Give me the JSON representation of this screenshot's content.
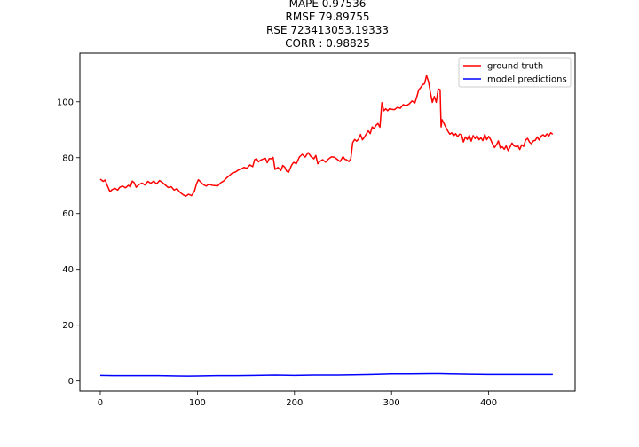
{
  "chart_data": {
    "type": "line",
    "title_lines": [
      "MAPE 0.97536",
      "RMSE 79.89755",
      "RSE 723413053.19333",
      "CORR : 0.98825"
    ],
    "xlabel": "",
    "ylabel": "",
    "xlim": [
      -21,
      489
    ],
    "ylim": [
      -3.6,
      117.4
    ],
    "xticks": [
      0,
      100,
      200,
      300,
      400
    ],
    "yticks": [
      0,
      20,
      40,
      60,
      80,
      100
    ],
    "grid": false,
    "legend_position": "top-right",
    "series": [
      {
        "name": "ground truth",
        "color": "#ff0000",
        "points": [
          [
            0,
            72.3
          ],
          [
            3,
            71.5
          ],
          [
            5,
            72.0
          ],
          [
            7,
            70.2
          ],
          [
            10,
            67.8
          ],
          [
            12,
            68.5
          ],
          [
            15,
            69.0
          ],
          [
            18,
            68.4
          ],
          [
            20,
            69.4
          ],
          [
            23,
            69.8
          ],
          [
            26,
            69.2
          ],
          [
            29,
            70.1
          ],
          [
            31,
            69.5
          ],
          [
            33,
            71.6
          ],
          [
            35,
            71.0
          ],
          [
            37,
            69.4
          ],
          [
            40,
            70.4
          ],
          [
            43,
            70.9
          ],
          [
            46,
            70.2
          ],
          [
            49,
            71.5
          ],
          [
            52,
            70.8
          ],
          [
            55,
            71.6
          ],
          [
            58,
            70.6
          ],
          [
            61,
            71.8
          ],
          [
            64,
            71.1
          ],
          [
            67,
            70.2
          ],
          [
            70,
            69.3
          ],
          [
            73,
            69.6
          ],
          [
            76,
            68.4
          ],
          [
            79,
            68.9
          ],
          [
            82,
            67.6
          ],
          [
            85,
            66.8
          ],
          [
            88,
            66.2
          ],
          [
            91,
            66.9
          ],
          [
            94,
            66.4
          ],
          [
            97,
            68.0
          ],
          [
            99,
            70.5
          ],
          [
            101,
            72.1
          ],
          [
            103,
            71.4
          ],
          [
            106,
            70.4
          ],
          [
            109,
            69.8
          ],
          [
            112,
            70.5
          ],
          [
            115,
            70.1
          ],
          [
            118,
            70.0
          ],
          [
            121,
            69.9
          ],
          [
            124,
            71.0
          ],
          [
            127,
            71.6
          ],
          [
            130,
            72.7
          ],
          [
            133,
            73.6
          ],
          [
            136,
            74.5
          ],
          [
            139,
            74.8
          ],
          [
            142,
            75.5
          ],
          [
            145,
            76.0
          ],
          [
            148,
            76.5
          ],
          [
            151,
            76.2
          ],
          [
            154,
            77.4
          ],
          [
            157,
            76.8
          ],
          [
            159,
            79.3
          ],
          [
            161,
            79.6
          ],
          [
            163,
            78.5
          ],
          [
            165,
            79.1
          ],
          [
            167,
            79.4
          ],
          [
            170,
            79.8
          ],
          [
            172,
            78.2
          ],
          [
            174,
            79.7
          ],
          [
            176,
            79.6
          ],
          [
            178,
            80.1
          ],
          [
            180,
            75.8
          ],
          [
            183,
            76.5
          ],
          [
            186,
            75.4
          ],
          [
            188,
            77.2
          ],
          [
            190,
            76.6
          ],
          [
            192,
            75.1
          ],
          [
            194,
            74.8
          ],
          [
            197,
            77.3
          ],
          [
            199,
            78.3
          ],
          [
            202,
            77.9
          ],
          [
            205,
            80.2
          ],
          [
            208,
            81.2
          ],
          [
            211,
            80.2
          ],
          [
            214,
            81.8
          ],
          [
            217,
            80.4
          ],
          [
            220,
            79.6
          ],
          [
            222,
            80.8
          ],
          [
            224,
            77.8
          ],
          [
            226,
            78.6
          ],
          [
            229,
            79.3
          ],
          [
            232,
            78.4
          ],
          [
            235,
            79.5
          ],
          [
            238,
            80.3
          ],
          [
            241,
            80.2
          ],
          [
            244,
            79.4
          ],
          [
            247,
            78.6
          ],
          [
            250,
            80.4
          ],
          [
            252,
            79.4
          ],
          [
            254,
            79.2
          ],
          [
            256,
            78.6
          ],
          [
            258,
            79.6
          ],
          [
            260,
            85.4
          ],
          [
            262,
            86.5
          ],
          [
            264,
            85.9
          ],
          [
            266,
            86.6
          ],
          [
            268,
            88.3
          ],
          [
            270,
            86.4
          ],
          [
            272,
            87.3
          ],
          [
            274,
            88.5
          ],
          [
            276,
            89.6
          ],
          [
            278,
            88.6
          ],
          [
            280,
            91.0
          ],
          [
            282,
            90.4
          ],
          [
            284,
            91.6
          ],
          [
            286,
            92.2
          ],
          [
            288,
            90.9
          ],
          [
            290,
            99.7
          ],
          [
            292,
            96.8
          ],
          [
            294,
            97.5
          ],
          [
            296,
            96.8
          ],
          [
            298,
            97.6
          ],
          [
            300,
            97.3
          ],
          [
            303,
            97.2
          ],
          [
            306,
            98.0
          ],
          [
            309,
            97.7
          ],
          [
            312,
            99.0
          ],
          [
            315,
            98.6
          ],
          [
            318,
            99.2
          ],
          [
            321,
            100.3
          ],
          [
            324,
            99.6
          ],
          [
            326,
            101.8
          ],
          [
            328,
            104.3
          ],
          [
            330,
            105.1
          ],
          [
            332,
            106.1
          ],
          [
            334,
            106.5
          ],
          [
            336,
            109.4
          ],
          [
            338,
            107.3
          ],
          [
            340,
            103.3
          ],
          [
            342,
            99.8
          ],
          [
            344,
            101.9
          ],
          [
            346,
            99.8
          ],
          [
            348,
            104.6
          ],
          [
            350,
            104.3
          ],
          [
            351,
            91.0
          ],
          [
            352,
            93.6
          ],
          [
            354,
            92.2
          ],
          [
            356,
            90.8
          ],
          [
            358,
            89.5
          ],
          [
            360,
            88.4
          ],
          [
            362,
            88.9
          ],
          [
            364,
            87.8
          ],
          [
            366,
            88.6
          ],
          [
            368,
            87.5
          ],
          [
            370,
            88.4
          ],
          [
            372,
            88.3
          ],
          [
            374,
            85.6
          ],
          [
            376,
            87.4
          ],
          [
            378,
            86.5
          ],
          [
            380,
            88.0
          ],
          [
            382,
            85.9
          ],
          [
            384,
            87.9
          ],
          [
            386,
            86.8
          ],
          [
            388,
            87.9
          ],
          [
            390,
            86.4
          ],
          [
            392,
            87.1
          ],
          [
            394,
            86.1
          ],
          [
            396,
            88.3
          ],
          [
            398,
            86.4
          ],
          [
            400,
            87.6
          ],
          [
            402,
            86.5
          ],
          [
            404,
            84.9
          ],
          [
            406,
            83.6
          ],
          [
            408,
            84.6
          ],
          [
            410,
            86.0
          ],
          [
            412,
            83.4
          ],
          [
            414,
            83.9
          ],
          [
            416,
            83.0
          ],
          [
            418,
            84.2
          ],
          [
            420,
            82.5
          ],
          [
            422,
            83.8
          ],
          [
            424,
            85.2
          ],
          [
            426,
            84.2
          ],
          [
            428,
            83.9
          ],
          [
            430,
            84.3
          ],
          [
            432,
            82.9
          ],
          [
            434,
            84.6
          ],
          [
            436,
            84.0
          ],
          [
            438,
            86.3
          ],
          [
            440,
            86.9
          ],
          [
            442,
            85.6
          ],
          [
            444,
            85.0
          ],
          [
            446,
            86.0
          ],
          [
            448,
            86.2
          ],
          [
            450,
            87.4
          ],
          [
            452,
            86.3
          ],
          [
            454,
            87.7
          ],
          [
            456,
            88.2
          ],
          [
            458,
            87.6
          ],
          [
            460,
            88.5
          ],
          [
            462,
            87.8
          ],
          [
            464,
            88.9
          ],
          [
            466,
            88.4
          ]
        ]
      },
      {
        "name": "model predictions",
        "color": "#0000ff",
        "points": [
          [
            0,
            2.0
          ],
          [
            20,
            1.9
          ],
          [
            40,
            1.9
          ],
          [
            60,
            1.9
          ],
          [
            80,
            1.8
          ],
          [
            90,
            1.75
          ],
          [
            100,
            1.8
          ],
          [
            120,
            1.9
          ],
          [
            140,
            1.9
          ],
          [
            160,
            2.0
          ],
          [
            180,
            2.1
          ],
          [
            200,
            2.0
          ],
          [
            220,
            2.1
          ],
          [
            240,
            2.1
          ],
          [
            260,
            2.2
          ],
          [
            280,
            2.3
          ],
          [
            300,
            2.5
          ],
          [
            320,
            2.5
          ],
          [
            340,
            2.6
          ],
          [
            350,
            2.6
          ],
          [
            360,
            2.5
          ],
          [
            380,
            2.4
          ],
          [
            400,
            2.3
          ],
          [
            420,
            2.3
          ],
          [
            440,
            2.3
          ],
          [
            466,
            2.3
          ]
        ]
      }
    ]
  }
}
